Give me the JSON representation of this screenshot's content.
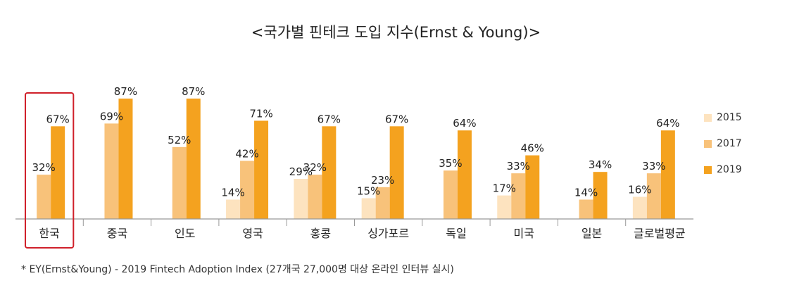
{
  "chart_data": {
    "type": "bar",
    "title": "<국가별 핀테크 도입 지수(Ernst & Young)>",
    "categories": [
      "한국",
      "중국",
      "인도",
      "영국",
      "홍콩",
      "싱가포르",
      "독일",
      "미국",
      "일본",
      "글로벌평균"
    ],
    "series": [
      {
        "name": "2015",
        "color": "#fde3bf",
        "values": [
          null,
          null,
          null,
          14,
          29,
          15,
          null,
          17,
          null,
          16
        ]
      },
      {
        "name": "2017",
        "color": "#f8c27a",
        "values": [
          32,
          69,
          52,
          42,
          32,
          23,
          35,
          33,
          14,
          33
        ]
      },
      {
        "name": "2019",
        "color": "#f4a21f",
        "values": [
          67,
          87,
          87,
          71,
          67,
          67,
          64,
          46,
          34,
          64
        ]
      }
    ],
    "value_suffix": "%",
    "ylim": [
      0,
      100
    ],
    "legend_position": "right",
    "highlight_category": "한국",
    "highlight_color": "#d0202a"
  },
  "footnote": "* EY(Ernst&Young) - 2019 Fintech Adoption Index (27개국 27,000명 대상 온라인 인터뷰 실시)"
}
